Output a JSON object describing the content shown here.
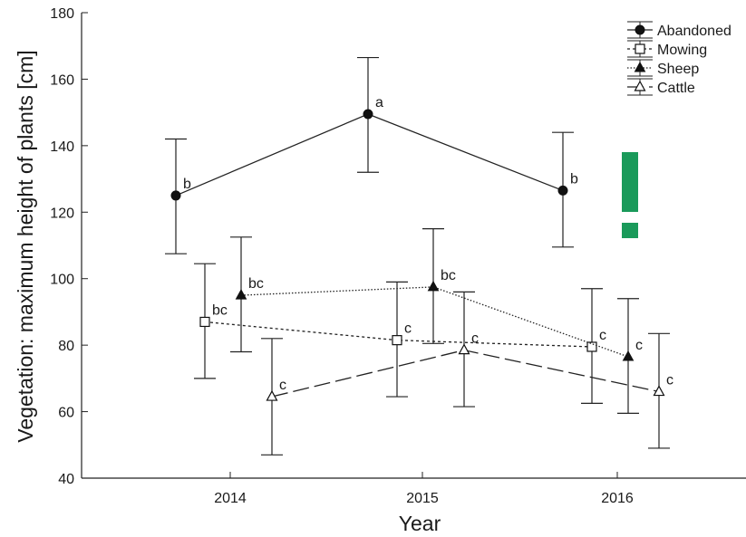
{
  "chart_data": {
    "type": "line",
    "title": "",
    "xlabel": "Year",
    "ylabel": "Vegetation: maximum height of plants [cm]",
    "categories": [
      "2014",
      "2015",
      "2016"
    ],
    "ylim": [
      40,
      180
    ],
    "yticks": [
      40,
      60,
      80,
      100,
      120,
      140,
      160,
      180
    ],
    "grid": false,
    "legend_position": "top-right",
    "series": [
      {
        "name": "Abandoned",
        "marker": "filled-circle",
        "line": "solid",
        "values": [
          125,
          149.5,
          126.5
        ],
        "lower": [
          107.5,
          132,
          109.5
        ],
        "upper": [
          142,
          166.5,
          144
        ],
        "letters": [
          "b",
          "a",
          "b"
        ]
      },
      {
        "name": "Mowing",
        "marker": "open-square",
        "line": "dotted",
        "values": [
          87,
          81.5,
          79.5
        ],
        "lower": [
          70,
          64.5,
          62.5
        ],
        "upper": [
          104.5,
          99,
          97
        ],
        "letters": [
          "bc",
          "c",
          "c"
        ]
      },
      {
        "name": "Sheep",
        "marker": "filled-triangle",
        "line": "fine-dotted",
        "values": [
          95,
          97.5,
          76.5
        ],
        "lower": [
          78,
          80.5,
          59.5
        ],
        "upper": [
          112.5,
          115,
          94
        ],
        "letters": [
          "bc",
          "bc",
          "c"
        ]
      },
      {
        "name": "Cattle",
        "marker": "open-triangle",
        "line": "dashed",
        "values": [
          64.5,
          78.5,
          66
        ],
        "lower": [
          47,
          61.5,
          49
        ],
        "upper": [
          82,
          96,
          83.5
        ],
        "letters": [
          "c",
          "c",
          "c"
        ]
      }
    ],
    "annotation": {
      "text": "!",
      "color": "#1a9a5a"
    }
  }
}
